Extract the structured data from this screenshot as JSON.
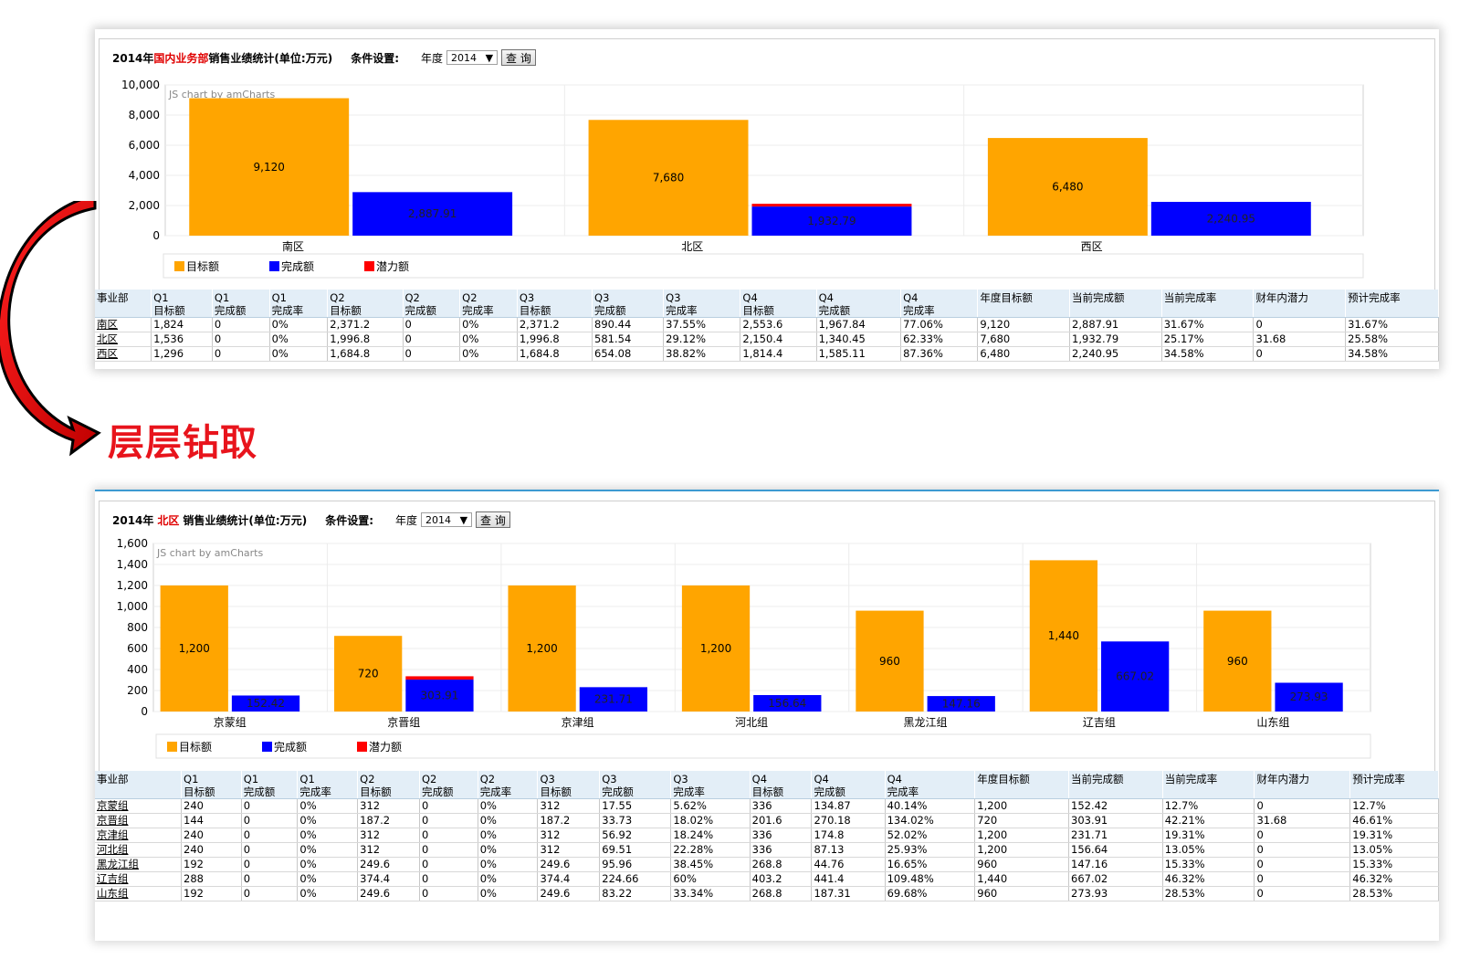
{
  "drill_label": "层层钻取",
  "top": {
    "title_year": "2014年",
    "title_dept": "国内业务部",
    "title_rest": "销售业绩统计(单位:万元)",
    "cond_label": "条件设置:",
    "year_label": "年度",
    "year_value": "2014",
    "query_button": "查 询",
    "watermark": "JS chart by amCharts",
    "legend": [
      "目标额",
      "完成额",
      "潜力额"
    ],
    "table_headers": [
      [
        "事业部",
        ""
      ],
      [
        "Q1",
        "目标额"
      ],
      [
        "Q1",
        "完成额"
      ],
      [
        "Q1",
        "完成率"
      ],
      [
        "Q2",
        "目标额"
      ],
      [
        "Q2",
        "完成额"
      ],
      [
        "Q2",
        "完成率"
      ],
      [
        "Q3",
        "目标额"
      ],
      [
        "Q3",
        "完成额"
      ],
      [
        "Q3",
        "完成率"
      ],
      [
        "Q4",
        "目标额"
      ],
      [
        "Q4",
        "完成额"
      ],
      [
        "Q4",
        "完成率"
      ],
      [
        "年度目标额",
        ""
      ],
      [
        "当前完成额",
        ""
      ],
      [
        "当前完成率",
        ""
      ],
      [
        "财年内潜力",
        ""
      ],
      [
        "预计完成率",
        ""
      ]
    ],
    "table_rows": [
      [
        "南区",
        "1,824",
        "0",
        "0%",
        "2,371.2",
        "0",
        "0%",
        "2,371.2",
        "890.44",
        "37.55%",
        "2,553.6",
        "1,967.84",
        "77.06%",
        "9,120",
        "2,887.91",
        "31.67%",
        "0",
        "31.67%"
      ],
      [
        "北区",
        "1,536",
        "0",
        "0%",
        "1,996.8",
        "0",
        "0%",
        "1,996.8",
        "581.54",
        "29.12%",
        "2,150.4",
        "1,340.45",
        "62.33%",
        "7,680",
        "1,932.79",
        "25.17%",
        "31.68",
        "25.58%"
      ],
      [
        "西区",
        "1,296",
        "0",
        "0%",
        "1,684.8",
        "0",
        "0%",
        "1,684.8",
        "654.08",
        "38.82%",
        "1,814.4",
        "1,585.11",
        "87.36%",
        "6,480",
        "2,240.95",
        "34.58%",
        "0",
        "34.58%"
      ]
    ]
  },
  "bottom": {
    "title_year": "2014年",
    "title_dept": "北区",
    "title_rest": "销售业绩统计(单位:万元)",
    "cond_label": "条件设置:",
    "year_label": "年度",
    "year_value": "2014",
    "query_button": "查 询",
    "watermark": "JS chart by amCharts",
    "legend": [
      "目标额",
      "完成额",
      "潜力额"
    ],
    "table_headers": [
      [
        "事业部",
        ""
      ],
      [
        "Q1",
        "目标额"
      ],
      [
        "Q1",
        "完成额"
      ],
      [
        "Q1",
        "完成率"
      ],
      [
        "Q2",
        "目标额"
      ],
      [
        "Q2",
        "完成额"
      ],
      [
        "Q2",
        "完成率"
      ],
      [
        "Q3",
        "目标额"
      ],
      [
        "Q3",
        "完成额"
      ],
      [
        "Q3",
        "完成率"
      ],
      [
        "Q4",
        "目标额"
      ],
      [
        "Q4",
        "完成额"
      ],
      [
        "Q4",
        "完成率"
      ],
      [
        "年度目标额",
        ""
      ],
      [
        "当前完成额",
        ""
      ],
      [
        "当前完成率",
        ""
      ],
      [
        "财年内潜力",
        ""
      ],
      [
        "预计完成率",
        ""
      ]
    ],
    "table_rows": [
      [
        "京蒙组",
        "240",
        "0",
        "0%",
        "312",
        "0",
        "0%",
        "312",
        "17.55",
        "5.62%",
        "336",
        "134.87",
        "40.14%",
        "1,200",
        "152.42",
        "12.7%",
        "0",
        "12.7%"
      ],
      [
        "京晋组",
        "144",
        "0",
        "0%",
        "187.2",
        "0",
        "0%",
        "187.2",
        "33.73",
        "18.02%",
        "201.6",
        "270.18",
        "134.02%",
        "720",
        "303.91",
        "42.21%",
        "31.68",
        "46.61%"
      ],
      [
        "京津组",
        "240",
        "0",
        "0%",
        "312",
        "0",
        "0%",
        "312",
        "56.92",
        "18.24%",
        "336",
        "174.8",
        "52.02%",
        "1,200",
        "231.71",
        "19.31%",
        "0",
        "19.31%"
      ],
      [
        "河北组",
        "240",
        "0",
        "0%",
        "312",
        "0",
        "0%",
        "312",
        "69.51",
        "22.28%",
        "336",
        "87.13",
        "25.93%",
        "1,200",
        "156.64",
        "13.05%",
        "0",
        "13.05%"
      ],
      [
        "黑龙江组",
        "192",
        "0",
        "0%",
        "249.6",
        "0",
        "0%",
        "249.6",
        "95.96",
        "38.45%",
        "268.8",
        "44.76",
        "16.65%",
        "960",
        "147.16",
        "15.33%",
        "0",
        "15.33%"
      ],
      [
        "辽吉组",
        "288",
        "0",
        "0%",
        "374.4",
        "0",
        "0%",
        "374.4",
        "224.66",
        "60%",
        "403.2",
        "441.4",
        "109.48%",
        "1,440",
        "667.02",
        "46.32%",
        "0",
        "46.32%"
      ],
      [
        "山东组",
        "192",
        "0",
        "0%",
        "249.6",
        "0",
        "0%",
        "249.6",
        "83.22",
        "33.34%",
        "268.8",
        "187.31",
        "69.68%",
        "960",
        "273.93",
        "28.53%",
        "0",
        "28.53%"
      ]
    ]
  },
  "colors": {
    "target": "#ffa500",
    "done": "#0000ff",
    "potential": "#ff0000",
    "title_highlight": "#e00000",
    "drill": "#e8141c"
  },
  "chart_data": [
    {
      "type": "bar",
      "categories": [
        "南区",
        "北区",
        "西区"
      ],
      "series": [
        {
          "name": "目标额",
          "values": [
            9120,
            7680,
            6480
          ],
          "labels": [
            "9,120",
            "7,680",
            "6,480"
          ]
        },
        {
          "name": "完成额",
          "values": [
            2887.91,
            1932.79,
            2240.95
          ],
          "labels": [
            "2,887.91",
            "1,932.79",
            "2,240.95"
          ]
        },
        {
          "name": "潜力额",
          "values": [
            0,
            31.68,
            0
          ],
          "stacked_on": "完成额"
        }
      ],
      "ylim": [
        0,
        10000
      ],
      "yticks": [
        "0",
        "2,000",
        "4,000",
        "6,000",
        "8,000",
        "10,000"
      ],
      "grid": true,
      "legend": "bottom-left"
    },
    {
      "type": "bar",
      "categories": [
        "京蒙组",
        "京晋组",
        "京津组",
        "河北组",
        "黑龙江组",
        "辽吉组",
        "山东组"
      ],
      "series": [
        {
          "name": "目标额",
          "values": [
            1200,
            720,
            1200,
            1200,
            960,
            1440,
            960
          ],
          "labels": [
            "1,200",
            "720",
            "1,200",
            "1,200",
            "960",
            "1,440",
            "960"
          ]
        },
        {
          "name": "完成额",
          "values": [
            152.42,
            303.91,
            231.71,
            156.64,
            147.16,
            667.02,
            273.93
          ],
          "labels": [
            "152.42",
            "303.91",
            "231.71",
            "156.64",
            "147.16",
            "667.02",
            "273.93"
          ]
        },
        {
          "name": "潜力额",
          "values": [
            0,
            31.68,
            0,
            0,
            0,
            0,
            0
          ],
          "stacked_on": "完成额"
        }
      ],
      "ylim": [
        0,
        1600
      ],
      "yticks": [
        "0",
        "200",
        "400",
        "600",
        "800",
        "1,000",
        "1,200",
        "1,400",
        "1,600"
      ],
      "grid": true,
      "legend": "bottom-left"
    }
  ]
}
